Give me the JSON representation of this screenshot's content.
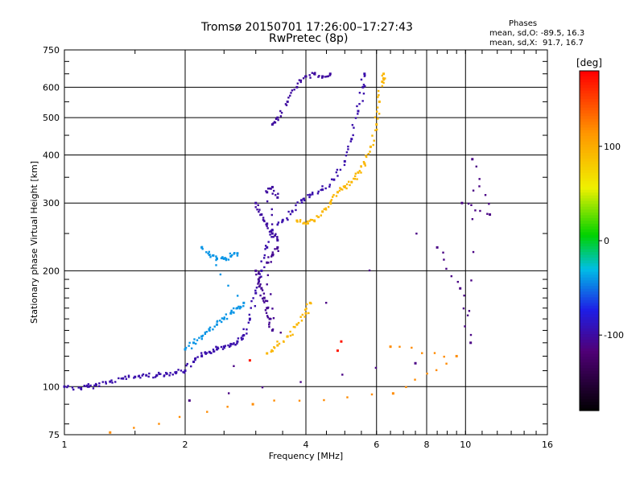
{
  "header": {
    "title_line1": "Tromsø 20150701 17:26:00–17:27:43",
    "title_line2": "RwPretec (8p)",
    "stats_heading": "Phases",
    "stats_o": "mean, sd,O: -89.5, 16.3",
    "stats_x": "mean, sd,X:  91.7, 16.7"
  },
  "colors": {
    "background": "#ffffff",
    "axis": "#000000",
    "grid": "#000000"
  },
  "chart_data": {
    "type": "scatter",
    "title": "Tromsø 20150701 17:26:00–17:27:43",
    "subtitle": "RwPretec (8p)",
    "xlabel": "Frequency [MHz]",
    "ylabel": "Stationary phase Virtual Height [km]",
    "x_scale": "log2",
    "y_scale": "log",
    "xlim": [
      1,
      16
    ],
    "ylim": [
      75,
      750
    ],
    "x_ticks": [
      1,
      2,
      4,
      6,
      8,
      10,
      16
    ],
    "x_tick_labels": [
      "1",
      "2",
      "4",
      "6",
      "8",
      "10",
      "16"
    ],
    "y_ticks": [
      75,
      100,
      200,
      300,
      400,
      500,
      600,
      750
    ],
    "y_tick_labels": [
      "75",
      "100",
      "200",
      "300",
      "400",
      "500",
      "600",
      "750"
    ],
    "grid": true,
    "colorbar": {
      "label": "[deg]",
      "range": [
        -180,
        180
      ],
      "ticks": [
        100,
        0,
        -100
      ],
      "tick_labels": [
        "100",
        "0",
        "-100"
      ]
    },
    "series": [
      {
        "name": "O-mode trace (blue)",
        "color_phase": -95,
        "points": [
          [
            1.0,
            100
          ],
          [
            1.1,
            99
          ],
          [
            1.15,
            100
          ],
          [
            1.2,
            101
          ],
          [
            1.3,
            103
          ],
          [
            1.4,
            105
          ],
          [
            1.5,
            106
          ],
          [
            1.6,
            107
          ],
          [
            1.7,
            107
          ],
          [
            1.8,
            108
          ],
          [
            1.9,
            109
          ],
          [
            2.0,
            110
          ],
          [
            2.1,
            116
          ],
          [
            2.2,
            120
          ],
          [
            2.3,
            123
          ],
          [
            2.4,
            125
          ],
          [
            2.5,
            127
          ],
          [
            2.6,
            129
          ],
          [
            2.7,
            131
          ],
          [
            2.8,
            136
          ],
          [
            2.9,
            150
          ],
          [
            3.0,
            175
          ],
          [
            3.1,
            200
          ],
          [
            3.2,
            230
          ],
          [
            3.3,
            255
          ],
          [
            3.5,
            270
          ],
          [
            3.7,
            285
          ],
          [
            3.9,
            305
          ],
          [
            4.1,
            315
          ],
          [
            4.4,
            325
          ],
          [
            4.7,
            345
          ],
          [
            5.0,
            385
          ],
          [
            5.2,
            440
          ],
          [
            5.4,
            520
          ],
          [
            5.55,
            600
          ],
          [
            5.6,
            650
          ]
        ]
      },
      {
        "name": "F1 cusp (blue)",
        "color_phase": -100,
        "points": [
          [
            3.0,
            300
          ],
          [
            3.1,
            280
          ],
          [
            3.2,
            265
          ],
          [
            3.3,
            250
          ],
          [
            3.4,
            240
          ],
          [
            3.2,
            320
          ],
          [
            3.3,
            330
          ],
          [
            3.4,
            310
          ]
        ]
      },
      {
        "name": "Spread F blob (blue)",
        "color_phase": -105,
        "points": [
          [
            3.0,
            200
          ],
          [
            3.05,
            190
          ],
          [
            3.1,
            180
          ],
          [
            3.15,
            170
          ],
          [
            3.2,
            160
          ],
          [
            3.25,
            150
          ],
          [
            3.3,
            140
          ],
          [
            3.2,
            210
          ],
          [
            3.3,
            220
          ],
          [
            3.4,
            230
          ]
        ]
      },
      {
        "name": "Upper branch (blue)",
        "color_phase": -100,
        "points": [
          [
            3.3,
            480
          ],
          [
            3.4,
            500
          ],
          [
            3.6,
            550
          ],
          [
            3.8,
            600
          ],
          [
            4.0,
            640
          ],
          [
            4.2,
            650
          ],
          [
            4.4,
            640
          ],
          [
            4.6,
            650
          ]
        ]
      },
      {
        "name": "E/Es trace (cyan)",
        "color_phase": -40,
        "points": [
          [
            2.0,
            125
          ],
          [
            2.1,
            130
          ],
          [
            2.2,
            135
          ],
          [
            2.3,
            140
          ],
          [
            2.4,
            145
          ],
          [
            2.5,
            150
          ],
          [
            2.6,
            155
          ],
          [
            2.7,
            160
          ],
          [
            2.8,
            165
          ],
          [
            2.2,
            230
          ],
          [
            2.3,
            220
          ],
          [
            2.4,
            215
          ],
          [
            2.5,
            215
          ],
          [
            2.6,
            218
          ],
          [
            2.7,
            222
          ]
        ]
      },
      {
        "name": "X-mode trace (yellow)",
        "color_phase": 95,
        "points": [
          [
            3.8,
            270
          ],
          [
            4.0,
            265
          ],
          [
            4.2,
            270
          ],
          [
            4.4,
            285
          ],
          [
            4.6,
            300
          ],
          [
            4.8,
            320
          ],
          [
            5.0,
            330
          ],
          [
            5.2,
            340
          ],
          [
            5.4,
            360
          ],
          [
            5.6,
            380
          ],
          [
            5.8,
            420
          ],
          [
            6.0,
            480
          ],
          [
            6.1,
            550
          ],
          [
            6.2,
            620
          ],
          [
            6.25,
            650
          ]
        ]
      },
      {
        "name": "X-mode lower (yellow)",
        "color_phase": 95,
        "points": [
          [
            3.2,
            122
          ],
          [
            3.4,
            128
          ],
          [
            3.6,
            135
          ],
          [
            3.8,
            145
          ],
          [
            4.0,
            155
          ],
          [
            4.1,
            165
          ]
        ]
      },
      {
        "name": "Scattered noise",
        "color_phase": -110,
        "points": [
          [
            8.5,
            230
          ],
          [
            9.7,
            180
          ],
          [
            10.3,
            130
          ],
          [
            10.4,
            390
          ],
          [
            11.5,
            280
          ],
          [
            9.8,
            300
          ],
          [
            2.05,
            92
          ],
          [
            7.5,
            115
          ]
        ]
      },
      {
        "name": "Red dots",
        "color_phase": 170,
        "points": [
          [
            2.9,
            117
          ],
          [
            4.8,
            124
          ],
          [
            4.9,
            131
          ]
        ]
      },
      {
        "name": "Orange dots",
        "color_phase": 120,
        "points": [
          [
            6.5,
            127
          ],
          [
            9.5,
            120
          ],
          [
            6.6,
            96
          ],
          [
            2.95,
            90
          ],
          [
            1.3,
            76
          ]
        ]
      }
    ]
  }
}
